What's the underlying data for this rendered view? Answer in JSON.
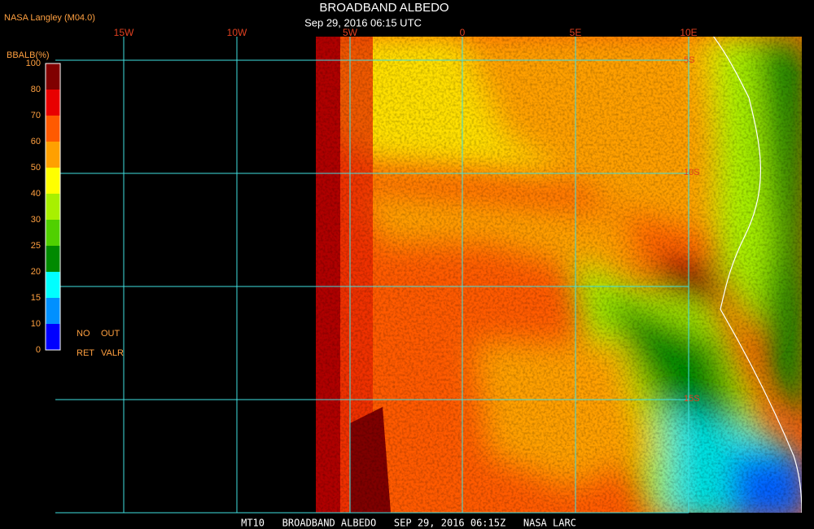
{
  "header": {
    "agency": "NASA Langley (M04.0)",
    "title": "BROADBAND ALBEDO",
    "time": "Sep 29, 2016 06:15 UTC"
  },
  "map": {
    "lon_labels": [
      "15W",
      "10W",
      "5W",
      "0",
      "5E",
      "10E"
    ],
    "lat_labels": [
      "5S",
      "10S",
      "15S"
    ]
  },
  "legend": {
    "title": "BBALB(%)",
    "ticks": [
      100,
      80,
      70,
      60,
      50,
      40,
      30,
      25,
      20,
      15,
      10,
      0
    ],
    "colors": [
      "#800000",
      "#e80000",
      "#ff5a00",
      "#ffa000",
      "#ffff00",
      "#a8f000",
      "#50d000",
      "#008a00",
      "#00ffff",
      "#0090ff",
      "#0000ff",
      "#9030e0"
    ],
    "notes": [
      "NO",
      "OUT",
      "RET",
      "VALR"
    ]
  },
  "footer": "MT10   BROADBAND ALBEDO   SEP 29, 2016 06:15Z   NASA LARC"
}
